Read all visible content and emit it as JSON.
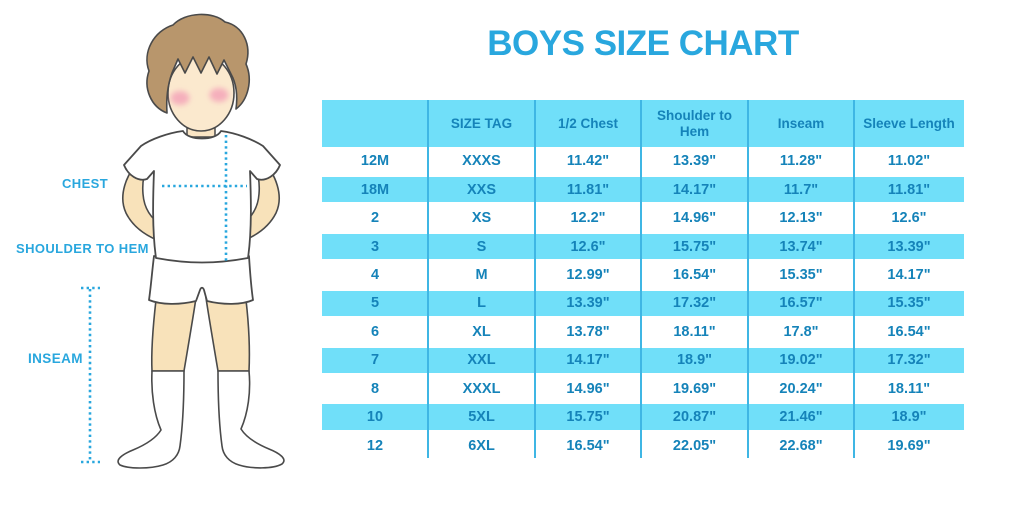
{
  "title": "BOYS SIZE CHART",
  "figure": {
    "labels": {
      "chest": "CHEST",
      "shoulder_to_hem": "SHOULDER TO HEM",
      "inseam": "INSEAM"
    }
  },
  "chart_data": {
    "type": "table",
    "title": "BOYS SIZE CHART",
    "columns": [
      "",
      "SIZE TAG",
      "1/2 Chest",
      "Shoulder to Hem",
      "Inseam",
      "Sleeve Length"
    ],
    "rows": [
      [
        "12M",
        "XXXS",
        "11.42\"",
        "13.39\"",
        "11.28\"",
        "11.02\""
      ],
      [
        "18M",
        "XXS",
        "11.81\"",
        "14.17\"",
        "11.7\"",
        "11.81\""
      ],
      [
        "2",
        "XS",
        "12.2\"",
        "14.96\"",
        "12.13\"",
        "12.6\""
      ],
      [
        "3",
        "S",
        "12.6\"",
        "15.75\"",
        "13.74\"",
        "13.39\""
      ],
      [
        "4",
        "M",
        "12.99\"",
        "16.54\"",
        "15.35\"",
        "14.17\""
      ],
      [
        "5",
        "L",
        "13.39\"",
        "17.32\"",
        "16.57\"",
        "15.35\""
      ],
      [
        "6",
        "XL",
        "13.78\"",
        "18.11\"",
        "17.8\"",
        "16.54\""
      ],
      [
        "7",
        "XXL",
        "14.17\"",
        "18.9\"",
        "19.02\"",
        "17.32\""
      ],
      [
        "8",
        "XXXL",
        "14.96\"",
        "19.69\"",
        "20.24\"",
        "18.11\""
      ],
      [
        "10",
        "5XL",
        "15.75\"",
        "20.87\"",
        "21.46\"",
        "18.9\""
      ],
      [
        "12",
        "6XL",
        "16.54\"",
        "22.05\"",
        "22.68\"",
        "19.69\""
      ]
    ],
    "layout": {
      "stripe_pattern": "alternating",
      "header_background": "light-blue",
      "grid": "vertical-separators-only"
    }
  },
  "colors": {
    "accent_blue": "#29A7DE",
    "stripe_blue": "#70DFF9",
    "table_text_blue": "#1583B9",
    "separator_blue": "#3FB6E4",
    "hair_brown": "#B8966C",
    "skin": "#FAE5C4",
    "cheek_pink": "#F5AFBC",
    "outline_gray": "#4A4A4A"
  }
}
